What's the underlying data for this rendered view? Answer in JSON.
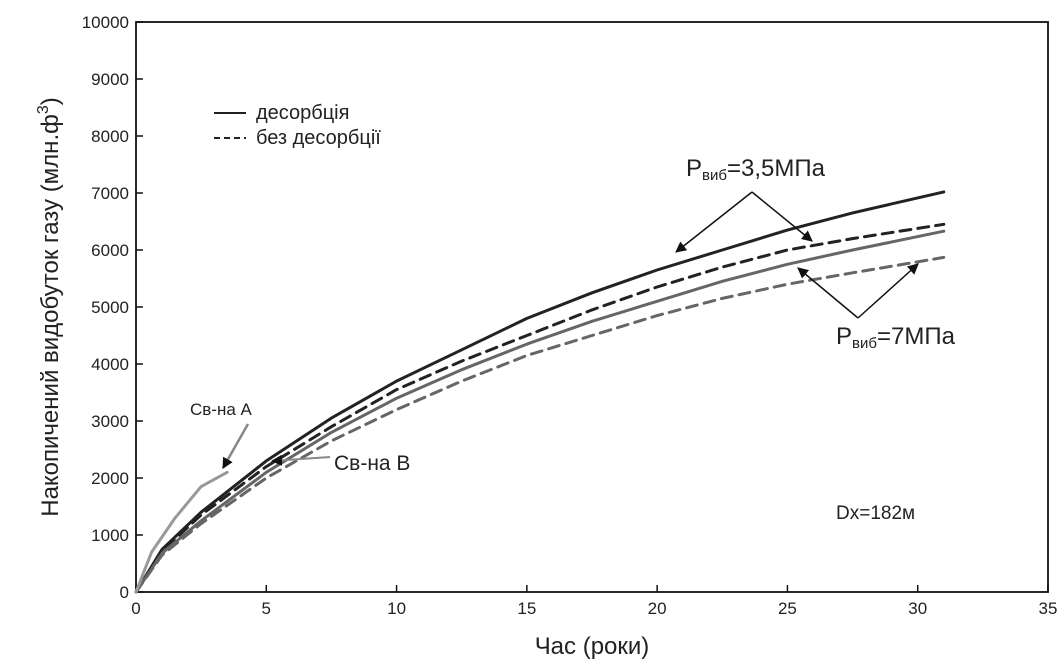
{
  "chart_data": {
    "type": "line",
    "xlabel": "Час (роки)",
    "ylabel": "Накопичений видобуток газу (млн.ф",
    "ylabel_sup": "3",
    "ylabel_close": ")",
    "xlim": [
      0,
      35
    ],
    "ylim": [
      0,
      10000
    ],
    "xticks": [
      "0",
      "5",
      "10",
      "15",
      "20",
      "25",
      "30",
      "35"
    ],
    "yticks": [
      "0",
      "1000",
      "2000",
      "3000",
      "4000",
      "5000",
      "6000",
      "7000",
      "8000",
      "9000",
      "10000"
    ],
    "grid": false,
    "legend": {
      "position": "top-left",
      "entries": [
        {
          "label": "десорбція",
          "style": "solid"
        },
        {
          "label": "без десорбції",
          "style": "dashed"
        }
      ]
    },
    "series": [
      {
        "style": "solid",
        "color": "#222222",
        "x": [
          0,
          1,
          2.5,
          5,
          7.5,
          10,
          12.5,
          15,
          17.5,
          20,
          22.5,
          25,
          27.5,
          31
        ],
        "y": [
          0,
          750,
          1400,
          2300,
          3050,
          3700,
          4250,
          4800,
          5250,
          5650,
          6000,
          6350,
          6650,
          7020
        ]
      },
      {
        "style": "dashed",
        "color": "#222222",
        "x": [
          0,
          1,
          2.5,
          5,
          7.5,
          10,
          12.5,
          15,
          17.5,
          20,
          22.5,
          25,
          27.5,
          31
        ],
        "y": [
          0,
          720,
          1350,
          2200,
          2900,
          3550,
          4050,
          4500,
          4950,
          5350,
          5700,
          6000,
          6200,
          6450
        ]
      },
      {
        "style": "solid",
        "color": "#666666",
        "x": [
          0,
          1,
          2.5,
          5,
          7.5,
          10,
          12.5,
          15,
          17.5,
          20,
          22.5,
          25,
          27.5,
          31
        ],
        "y": [
          0,
          680,
          1250,
          2100,
          2800,
          3400,
          3900,
          4350,
          4750,
          5100,
          5450,
          5750,
          6000,
          6330
        ]
      },
      {
        "style": "dashed",
        "color": "#666666",
        "x": [
          0,
          1,
          2.5,
          5,
          7.5,
          10,
          12.5,
          15,
          17.5,
          20,
          22.5,
          25,
          27.5,
          31
        ],
        "y": [
          0,
          650,
          1200,
          2000,
          2650,
          3200,
          3700,
          4150,
          4500,
          4850,
          5150,
          5400,
          5600,
          5870
        ]
      },
      {
        "style": "solid",
        "color": "#999999",
        "x": [
          0,
          0.6,
          1.5,
          2.5,
          3.5
        ],
        "y": [
          0,
          700,
          1300,
          1850,
          2100
        ]
      }
    ],
    "annotations": [
      {
        "text_main": "P",
        "text_sub": "виб",
        "text_rest": "=3,5МПа"
      },
      {
        "text_main": "P",
        "text_sub": "виб",
        "text_rest": "=7МПа"
      },
      {
        "text": "Св-на А"
      },
      {
        "text": "Св-на В"
      },
      {
        "text": "Dx=182м"
      }
    ]
  }
}
